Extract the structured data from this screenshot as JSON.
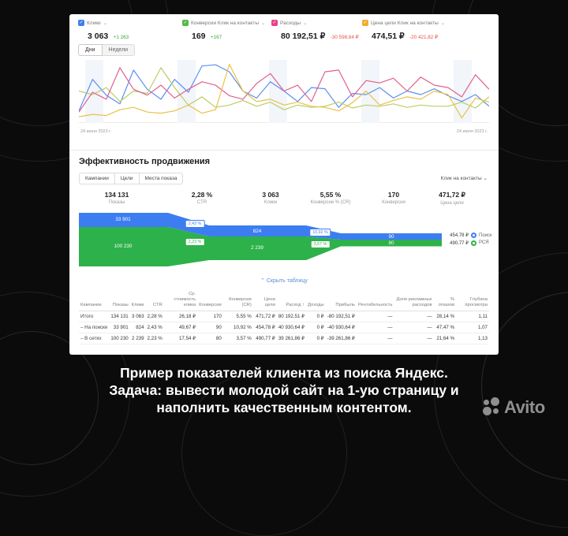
{
  "card": {
    "metrics": [
      {
        "label": "Клики",
        "value": "3 063",
        "delta": "+1 263",
        "color": "#3d7df2",
        "delta_color": "#3ca23c"
      },
      {
        "label": "Конверсии Клик на контакты",
        "value": "169",
        "delta": "+167",
        "color": "#53b946",
        "delta_color": "#3ca23c"
      },
      {
        "label": "Расходы",
        "value": "80 192,51 ₽",
        "delta": "-30 598,64 ₽",
        "color": "#e8418c",
        "delta_color": "#e05252"
      },
      {
        "label": "Цена цели Клик на контакты",
        "value": "474,51 ₽",
        "delta": "-20 421,82 ₽",
        "color": "#f0ad2d",
        "delta_color": "#e05252"
      }
    ],
    "period_tabs": {
      "days": "Дни",
      "weeks": "Недели"
    },
    "section": {
      "title": "Эффективность продвижения",
      "tabs": {
        "campaigns": "Кампании",
        "goals": "Цели",
        "placements": "Места показа"
      },
      "goal_selector": "Клик на контакты ⌄",
      "stats": [
        {
          "value": "134 131",
          "label": "Показы"
        },
        {
          "value": "2,28 %",
          "label": "CTR"
        },
        {
          "value": "3 063",
          "label": "Клики"
        },
        {
          "value": "5,55 %",
          "label": "Конверсии % (CR)"
        },
        {
          "value": "170",
          "label": "Конверсии"
        },
        {
          "value": "471,72 ₽",
          "label": "Цена цели"
        }
      ],
      "funnel": {
        "search": {
          "impressions": "33 901",
          "ctr": "2,43 %",
          "clicks": "824",
          "cr": "10,92 %",
          "conversions": "90",
          "cpa": "454,78 ₽",
          "name": "Поиск",
          "color": "#3d7df2"
        },
        "network": {
          "impressions": "100 230",
          "ctr": "2,23 %",
          "clicks": "2 239",
          "cr": "3,57 %",
          "conversions": "80",
          "cpa": "490,77 ₽",
          "name": "РСЯ",
          "color": "#2db14a"
        }
      },
      "hide_table_link": "⌃  Скрыть таблицу",
      "table": {
        "headers": [
          "Кампании",
          "Показы",
          "Клики",
          "CTR",
          "Ср. стоимость клика",
          "Конверсии",
          "Конверсии (CR)",
          "Цена цели",
          "Расход ↑",
          "Доходы",
          "Прибыль",
          "Рентабельность",
          "Доля рекламных расходов",
          "% отказов",
          "Глубина просмотра"
        ],
        "rows": [
          [
            "Итого",
            "134 131",
            "3 063",
            "2,28 %",
            "26,18 ₽",
            "170",
            "5,55 %",
            "471,72 ₽",
            "80 192,51 ₽",
            "0 ₽",
            "-80 192,51 ₽",
            "—",
            "—",
            "28,14 %",
            "1,11"
          ],
          [
            "– На поиске",
            "33 901",
            "824",
            "2,43 %",
            "49,67 ₽",
            "90",
            "10,92 %",
            "454,78 ₽",
            "40 930,64 ₽",
            "0 ₽",
            "-40 930,64 ₽",
            "—",
            "—",
            "47,47 %",
            "1,07"
          ],
          [
            "– В сетях",
            "100 230",
            "2 239",
            "2,23 %",
            "17,54 ₽",
            "80",
            "3,57 %",
            "490,77 ₽",
            "39 261,86 ₽",
            "0 ₽",
            "-39 261,86 ₽",
            "—",
            "—",
            "21,64 %",
            "1,13"
          ]
        ]
      }
    }
  },
  "chart_data": {
    "line_chart": {
      "type": "line",
      "x_start_label": "24 июня 2023 г.",
      "x_end_label": "24 июля 2023 г.",
      "ylim": [
        0,
        100
      ],
      "unit": "normalized visual estimate, 0-100",
      "grid": "weekend vertical bands",
      "legend_position": "top metric cards",
      "series": [
        {
          "name": "Клики",
          "color": "#5b8ff2",
          "values": [
            18,
            72,
            45,
            30,
            88,
            55,
            38,
            72,
            50,
            95,
            97,
            85,
            52,
            40,
            68,
            52,
            34,
            58,
            56,
            24,
            48,
            46,
            58,
            40,
            52,
            46,
            56,
            44,
            34,
            46,
            26
          ]
        },
        {
          "name": "Конверсии Клик на контакты",
          "color": "#b9cf63",
          "values": [
            52,
            46,
            58,
            34,
            52,
            48,
            92,
            58,
            28,
            42,
            24,
            28,
            36,
            26,
            33,
            20,
            28,
            24,
            26,
            33,
            23,
            28,
            26,
            30,
            24,
            28,
            26,
            26,
            33,
            23,
            42
          ]
        },
        {
          "name": "Расходы",
          "color": "#e0608e",
          "values": [
            16,
            50,
            38,
            92,
            55,
            45,
            62,
            40,
            55,
            68,
            62,
            44,
            38,
            65,
            82,
            52,
            62,
            34,
            85,
            88,
            42,
            70,
            66,
            74,
            52,
            76,
            62,
            58,
            42,
            80,
            55
          ]
        },
        {
          "name": "Цена цели Клик на контакты",
          "color": "#e9c247",
          "values": [
            8,
            12,
            10,
            20,
            24,
            16,
            14,
            18,
            28,
            14,
            20,
            98,
            52,
            34,
            38,
            28,
            33,
            26,
            24,
            18,
            32,
            52,
            28,
            36,
            42,
            38,
            52,
            46,
            6,
            40,
            33
          ]
        }
      ]
    },
    "funnel": {
      "type": "funnel",
      "stages": [
        "Показы",
        "Клики",
        "Конверсии"
      ],
      "series": [
        {
          "name": "Поиск",
          "color": "#3d7df2",
          "values": [
            33901,
            824,
            90
          ],
          "ctr": "2,43 %",
          "cr": "10,92 %",
          "cpa": "454,78 ₽"
        },
        {
          "name": "РСЯ",
          "color": "#2db14a",
          "values": [
            100230,
            2239,
            80
          ],
          "ctr": "2,23 %",
          "cr": "3,57 %",
          "cpa": "490,77 ₽"
        }
      ]
    }
  },
  "caption": {
    "lines": [
      "Пример показателей клиента из поиска Яндекс.",
      "Задача: вывести молодой сайт на 1-ую страницу и",
      "наполнить качественным контентом."
    ]
  },
  "brand": {
    "name": "Avito"
  }
}
